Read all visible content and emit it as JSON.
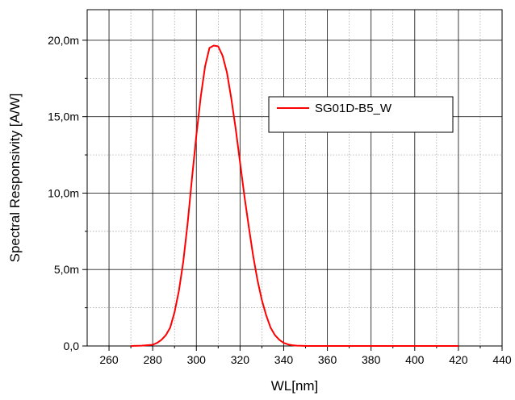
{
  "chart_data": {
    "type": "line",
    "title": "",
    "xlabel": "WL[nm]",
    "ylabel": "Spectral Responsivity [A/W]",
    "xlim": [
      250,
      440
    ],
    "ylim": [
      0,
      0.022
    ],
    "x_ticks": [
      260,
      280,
      300,
      320,
      340,
      360,
      380,
      400,
      420,
      440
    ],
    "x_tick_labels": [
      "260",
      "280",
      "300",
      "320",
      "340",
      "360",
      "380",
      "400",
      "420",
      "440"
    ],
    "y_ticks": [
      0,
      0.005,
      0.01,
      0.015,
      0.02
    ],
    "y_tick_labels": [
      "0,0",
      "5,0m",
      "10,0m",
      "15,0m",
      "20,0m"
    ],
    "grid": true,
    "legend_position": "top-right",
    "series": [
      {
        "name": "SG01D-B5_W",
        "color": "#ff0000",
        "x": [
          270,
          275,
          280,
          282,
          284,
          286,
          288,
          290,
          292,
          294,
          296,
          298,
          300,
          302,
          304,
          306,
          308,
          310,
          312,
          314,
          316,
          318,
          320,
          322,
          324,
          326,
          328,
          330,
          332,
          334,
          336,
          338,
          340,
          342,
          344,
          346,
          348,
          350,
          355,
          360,
          380,
          400,
          420
        ],
        "y": [
          0,
          2e-05,
          8e-05,
          0.0002,
          0.0004,
          0.0007,
          0.0012,
          0.0022,
          0.0036,
          0.0055,
          0.008,
          0.011,
          0.0138,
          0.0163,
          0.0183,
          0.0195,
          0.01965,
          0.0196,
          0.019,
          0.0179,
          0.0162,
          0.0142,
          0.012,
          0.0098,
          0.0078,
          0.0059,
          0.0043,
          0.003,
          0.002,
          0.0012,
          0.0007,
          0.0004,
          0.0002,
          0.0001,
          5e-05,
          2e-05,
          1e-05,
          0,
          0,
          0,
          0,
          0,
          0
        ]
      }
    ]
  }
}
